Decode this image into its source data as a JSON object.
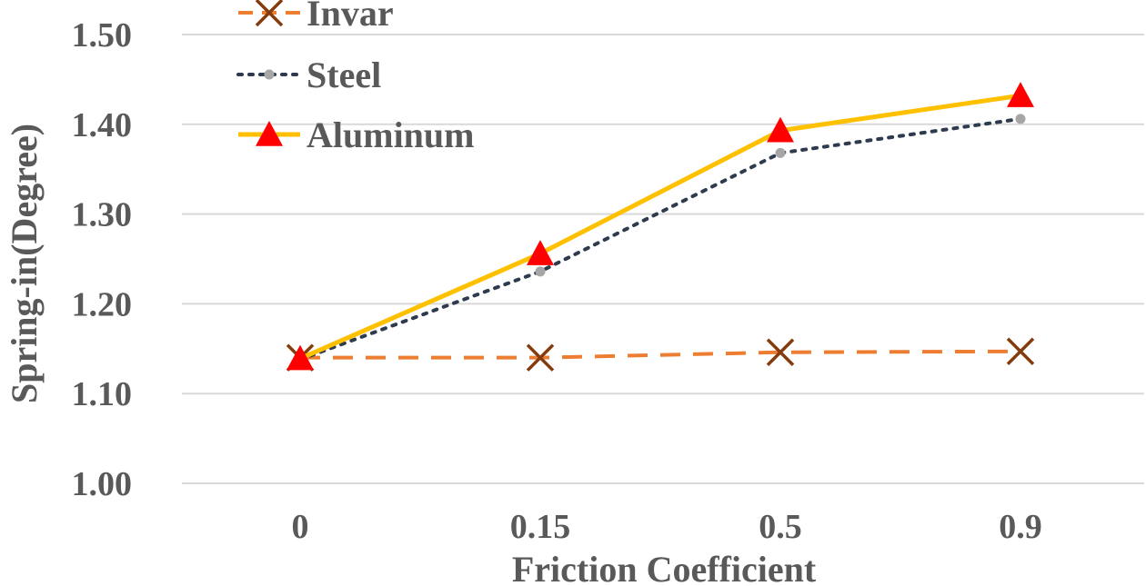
{
  "chart_data": {
    "type": "line",
    "categories": [
      "0",
      "0.15",
      "0.5",
      "0.9"
    ],
    "xlabel": "Friction Coefficient",
    "ylabel": "Spring-in(Degree)",
    "ylim": [
      1.0,
      1.5
    ],
    "yticks": [
      "1.00",
      "1.10",
      "1.20",
      "1.30",
      "1.40",
      "1.50"
    ],
    "grid": true,
    "legend_position": "top-left",
    "series": [
      {
        "name": "Invar",
        "values": [
          1.14,
          1.14,
          1.146,
          1.147
        ],
        "color": "#ed7d31",
        "marker": "x",
        "marker_color": "#843c0c",
        "line_style": "dashed"
      },
      {
        "name": "Steel",
        "values": [
          1.138,
          1.236,
          1.368,
          1.406
        ],
        "color": "#2e3b4e",
        "marker": "circle",
        "marker_color": "#a6a6a6",
        "line_style": "dotted"
      },
      {
        "name": "Aluminum",
        "values": [
          1.139,
          1.256,
          1.393,
          1.432
        ],
        "color": "#ffc000",
        "marker": "triangle",
        "marker_color": "#ff0000",
        "line_style": "solid"
      }
    ]
  }
}
